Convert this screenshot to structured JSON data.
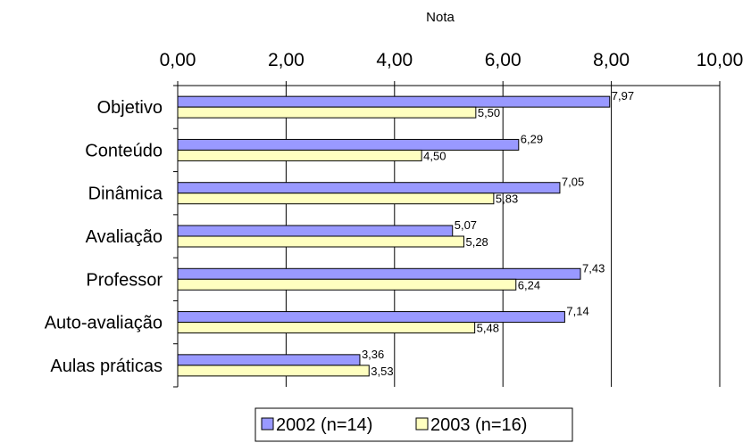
{
  "chart_data": {
    "type": "bar",
    "orientation": "horizontal",
    "title": "",
    "xlabel": "Nota",
    "ylabel": "",
    "xlim": [
      0,
      10
    ],
    "xticks": [
      "0,00",
      "2,00",
      "4,00",
      "6,00",
      "8,00",
      "10,00"
    ],
    "categories": [
      "Objetivo",
      "Conteúdo",
      "Dinâmica",
      "Avaliação",
      "Professor",
      "Auto-avaliação",
      "Aulas práticas"
    ],
    "series": [
      {
        "name": "2002 (n=14)",
        "color": "#9999ff",
        "values": [
          7.97,
          6.29,
          7.05,
          5.07,
          7.43,
          7.14,
          3.36
        ],
        "labels": [
          "7,97",
          "6,29",
          "7,05",
          "5,07",
          "7,43",
          "7,14",
          "3,36"
        ]
      },
      {
        "name": "2003 (n=16)",
        "color": "#ffffc0",
        "values": [
          5.5,
          4.5,
          5.83,
          5.28,
          6.24,
          5.48,
          3.53
        ],
        "labels": [
          "5,50",
          "4,50",
          "5,83",
          "5,28",
          "6,24",
          "5,48",
          "3,53"
        ]
      }
    ],
    "grid": true,
    "legend_position": "bottom",
    "x_axis_position": "top"
  }
}
